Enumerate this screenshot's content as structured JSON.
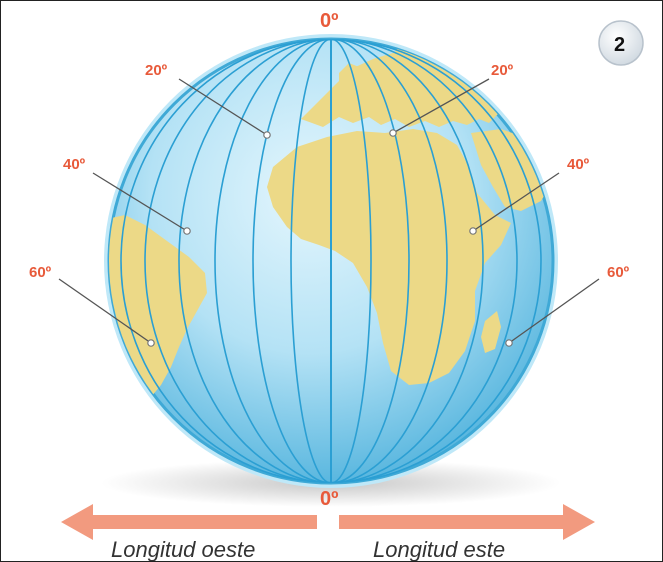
{
  "badge": "2",
  "meridian_labels": {
    "top_zero": "0º",
    "bottom_zero": "0º",
    "west_20": "20º",
    "west_40": "40º",
    "west_60": "60º",
    "east_20": "20º",
    "east_40": "40º",
    "east_60": "60º"
  },
  "arrows": {
    "west_label": "Longitud oeste",
    "east_label": "Longitud este"
  },
  "colors": {
    "ocean": "#a8ddf3",
    "ocean_edge": "#3fa9d6",
    "land": "#ecd987",
    "meridian": "#2b9fd3",
    "label": "#e85a3a",
    "arrow": "#f29a7f"
  }
}
